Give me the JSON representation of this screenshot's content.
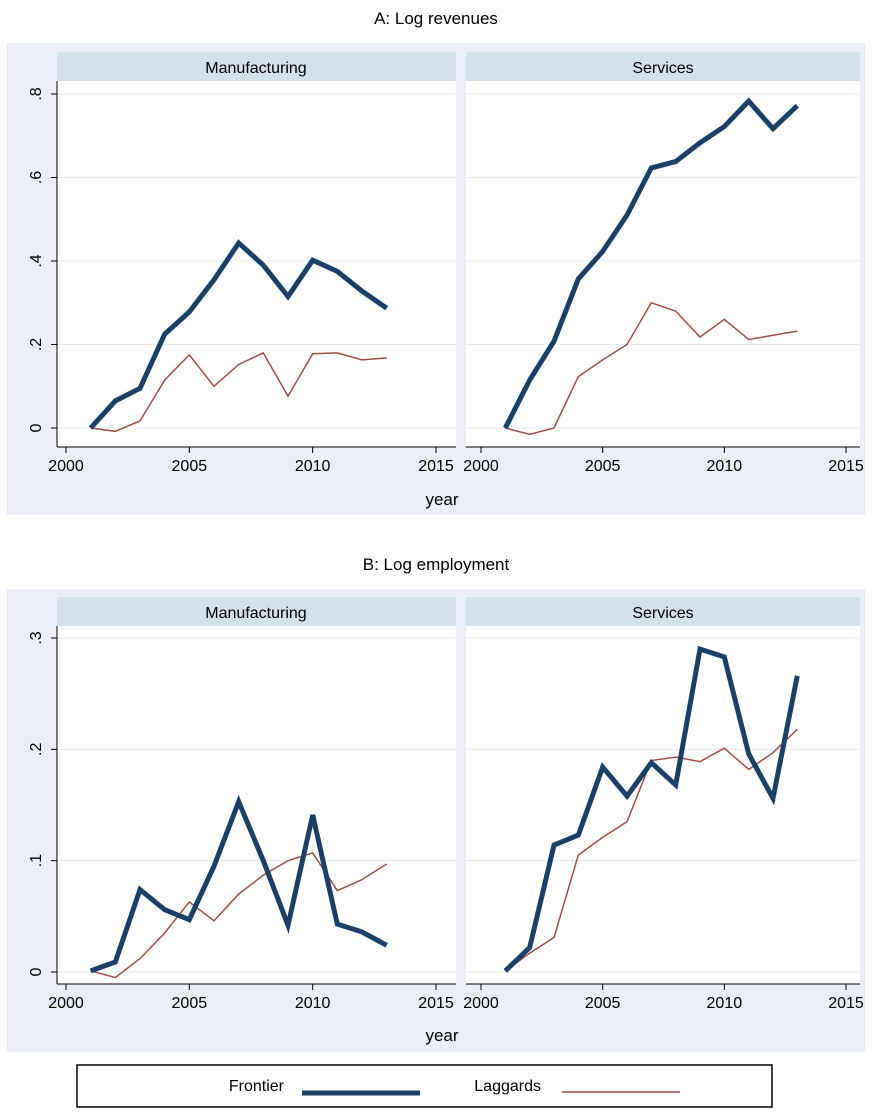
{
  "chart_data": [
    {
      "type": "line",
      "title": "A: Log revenues",
      "xlabel": "year",
      "ylabel": "",
      "panels": [
        {
          "label": "Manufacturing",
          "x": [
            2001,
            2002,
            2003,
            2004,
            2005,
            2006,
            2007,
            2008,
            2009,
            2010,
            2011,
            2012,
            2013
          ],
          "series": [
            {
              "name": "Frontier",
              "values": [
                0.0,
                0.065,
                0.095,
                0.225,
                0.278,
                0.355,
                0.443,
                0.39,
                0.315,
                0.402,
                0.375,
                0.328,
                0.287
              ]
            },
            {
              "name": "Laggards",
              "values": [
                0.0,
                -0.008,
                0.017,
                0.115,
                0.175,
                0.1,
                0.152,
                0.18,
                0.076,
                0.178,
                0.18,
                0.163,
                0.168
              ]
            }
          ]
        },
        {
          "label": "Services",
          "x": [
            2001,
            2002,
            2003,
            2004,
            2005,
            2006,
            2007,
            2008,
            2009,
            2010,
            2011,
            2012,
            2013
          ],
          "series": [
            {
              "name": "Frontier",
              "values": [
                0.0,
                0.115,
                0.208,
                0.357,
                0.423,
                0.51,
                0.623,
                0.638,
                0.683,
                0.722,
                0.783,
                0.717,
                0.772
              ]
            },
            {
              "name": "Laggards",
              "values": [
                0.0,
                -0.015,
                0.0,
                0.123,
                0.163,
                0.2,
                0.3,
                0.28,
                0.218,
                0.26,
                0.212,
                0.222,
                0.232
              ]
            }
          ]
        }
      ],
      "xticks": [
        "2000",
        "2005",
        "2010",
        "2015"
      ],
      "yticks": [
        "0",
        ".2",
        ".4",
        ".6",
        ".8"
      ],
      "xlim": [
        2000,
        2015
      ],
      "ylim": [
        -0.03,
        0.84
      ],
      "grid": true
    },
    {
      "type": "line",
      "title": "B: Log employment",
      "xlabel": "year",
      "ylabel": "",
      "panels": [
        {
          "label": "Manufacturing",
          "x": [
            2001,
            2002,
            2003,
            2004,
            2005,
            2006,
            2007,
            2008,
            2009,
            2010,
            2011,
            2012,
            2013
          ],
          "series": [
            {
              "name": "Frontier",
              "values": [
                0.001,
                0.009,
                0.074,
                0.056,
                0.047,
                0.095,
                0.153,
                0.1,
                0.042,
                0.141,
                0.043,
                0.036,
                0.024
              ]
            },
            {
              "name": "Laggards",
              "values": [
                0.001,
                -0.005,
                0.012,
                0.035,
                0.063,
                0.046,
                0.07,
                0.087,
                0.1,
                0.107,
                0.073,
                0.083,
                0.097
              ]
            }
          ]
        },
        {
          "label": "Services",
          "x": [
            2001,
            2002,
            2003,
            2004,
            2005,
            2006,
            2007,
            2008,
            2009,
            2010,
            2011,
            2012,
            2013
          ],
          "series": [
            {
              "name": "Frontier",
              "values": [
                0.001,
                0.022,
                0.114,
                0.123,
                0.184,
                0.158,
                0.188,
                0.168,
                0.29,
                0.283,
                0.196,
                0.156,
                0.266
              ]
            },
            {
              "name": "Laggards",
              "values": [
                0.001,
                0.017,
                0.031,
                0.105,
                0.121,
                0.135,
                0.19,
                0.193,
                0.189,
                0.201,
                0.182,
                0.197,
                0.218
              ]
            }
          ]
        }
      ],
      "xticks": [
        "2000",
        "2005",
        "2010",
        "2015"
      ],
      "yticks": [
        "0",
        ".1",
        ".2",
        ".3"
      ],
      "xlim": [
        2000,
        2015
      ],
      "ylim": [
        -0.01,
        0.307
      ],
      "grid": true
    }
  ],
  "legend": {
    "placement": "bottom",
    "items": [
      {
        "name": "Frontier",
        "color": "#1c3f66"
      },
      {
        "name": "Laggards",
        "color": "#a04e48"
      }
    ]
  },
  "colors": {
    "frontier": "#1c3f66",
    "laggards": "#a04e48",
    "panel_background": "#e9eff4",
    "strip_background": "#d4e1e9",
    "plot_background": "#ffffff",
    "grid": "#e6edf2"
  }
}
